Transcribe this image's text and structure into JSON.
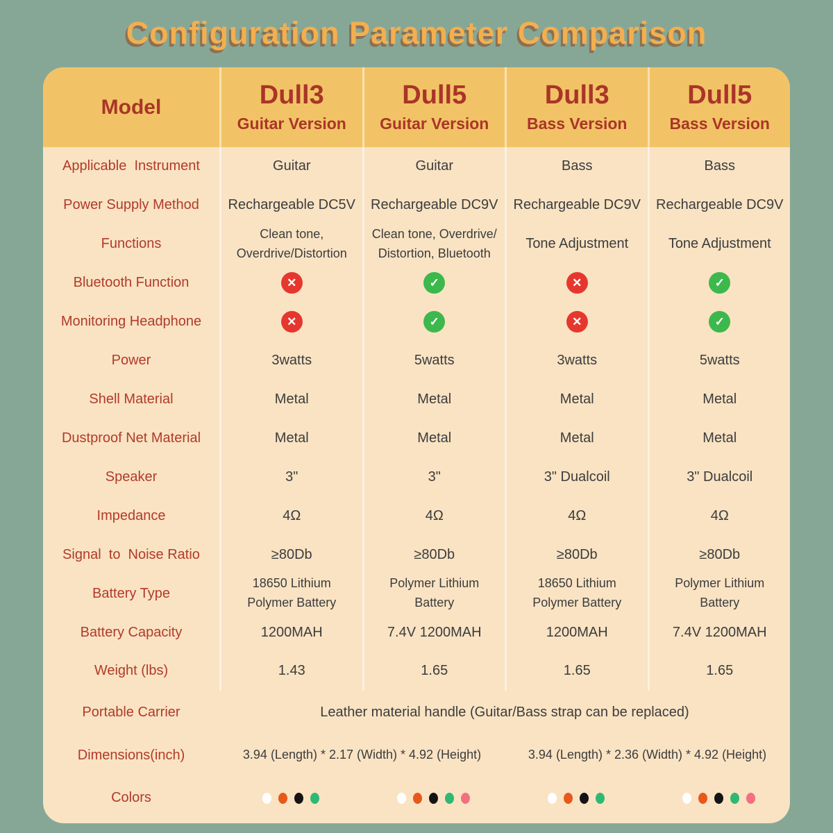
{
  "title": "Configuration Parameter Comparison",
  "palette": {
    "background": "#86A796",
    "title_text": "#F3AF4F",
    "title_shadow": "#8C7052",
    "header_bg": "#F2C366",
    "header_text": "#A93528",
    "body_bg": "#F9E3C3",
    "label_text": "#B23A2A",
    "value_text": "#3C3C3C",
    "check_green": "#3CB84C",
    "cross_red": "#E6372E"
  },
  "table": {
    "model_header": "Model",
    "columns": [
      {
        "model": "Dull3",
        "version": "Guitar Version"
      },
      {
        "model": "Dull5",
        "version": "Guitar Version"
      },
      {
        "model": "Dull3",
        "version": "Bass Version"
      },
      {
        "model": "Dull5",
        "version": "Bass Version"
      }
    ],
    "icons": {
      "yes": "check-icon",
      "no": "cross-icon"
    },
    "rows": [
      {
        "label": "Applicable  Instrument",
        "values": [
          "Guitar",
          "Guitar",
          "Bass",
          "Bass"
        ]
      },
      {
        "label": "Power Supply Method",
        "values": [
          "Rechargeable DC5V",
          "Rechargeable DC9V",
          "Rechargeable DC9V",
          "Rechargeable DC9V"
        ]
      },
      {
        "label": "Functions",
        "values": [
          "Clean tone,\nOverdrive/Distortion",
          "Clean tone, Overdrive/\nDistortion, Bluetooth",
          "Tone Adjustment",
          "Tone Adjustment"
        ]
      },
      {
        "label": "Bluetooth Function",
        "type": "icons",
        "values": [
          "no",
          "yes",
          "no",
          "yes"
        ]
      },
      {
        "label": "Monitoring Headphone",
        "type": "icons",
        "values": [
          "no",
          "yes",
          "no",
          "yes"
        ]
      },
      {
        "label": "Power",
        "values": [
          "3watts",
          "5watts",
          "3watts",
          "5watts"
        ]
      },
      {
        "label": "Shell Material",
        "values": [
          "Metal",
          "Metal",
          "Metal",
          "Metal"
        ]
      },
      {
        "label": "Dustproof Net Material",
        "values": [
          "Metal",
          "Metal",
          "Metal",
          "Metal"
        ]
      },
      {
        "label": "Speaker",
        "values": [
          "3\"",
          "3\"",
          "3\" Dualcoil",
          "3\" Dualcoil"
        ]
      },
      {
        "label": "Impedance",
        "values": [
          "4Ω",
          "4Ω",
          "4Ω",
          "4Ω"
        ]
      },
      {
        "label": "Signal  to  Noise Ratio",
        "values": [
          "≥80Db",
          "≥80Db",
          "≥80Db",
          "≥80Db"
        ]
      },
      {
        "label": "Battery Type",
        "values": [
          "18650 Lithium\nPolymer Battery",
          "Polymer Lithium\nBattery",
          "18650 Lithium\nPolymer Battery",
          "Polymer Lithium\nBattery"
        ]
      },
      {
        "label": "Battery Capacity",
        "values": [
          "1200MAH",
          "7.4V 1200MAH",
          "1200MAH",
          "7.4V 1200MAH"
        ]
      },
      {
        "label": "Weight (lbs)",
        "values": [
          "1.43",
          "1.65",
          "1.65",
          "1.65"
        ]
      }
    ],
    "portable_carrier": {
      "label": "Portable Carrier",
      "value": "Leather material handle (Guitar/Bass strap can be replaced)"
    },
    "dimensions": {
      "label": "Dimensions(inch)",
      "guitar": "3.94 (Length) * 2.17  (Width) * 4.92 (Height)",
      "bass": "3.94 (Length) * 2.36 (Width) * 4.92 (Height)"
    },
    "colors_row": {
      "label": "Colors",
      "swatches": [
        [
          "#FFFFFF",
          "#E6581B",
          "#141414",
          "#2FB873"
        ],
        [
          "#FFFFFF",
          "#E6581B",
          "#141414",
          "#2FB873",
          "#F4707E"
        ],
        [
          "#FFFFFF",
          "#E6581B",
          "#141414",
          "#2FB873"
        ],
        [
          "#FFFFFF",
          "#E6581B",
          "#141414",
          "#2FB873",
          "#F4707E"
        ]
      ]
    }
  }
}
